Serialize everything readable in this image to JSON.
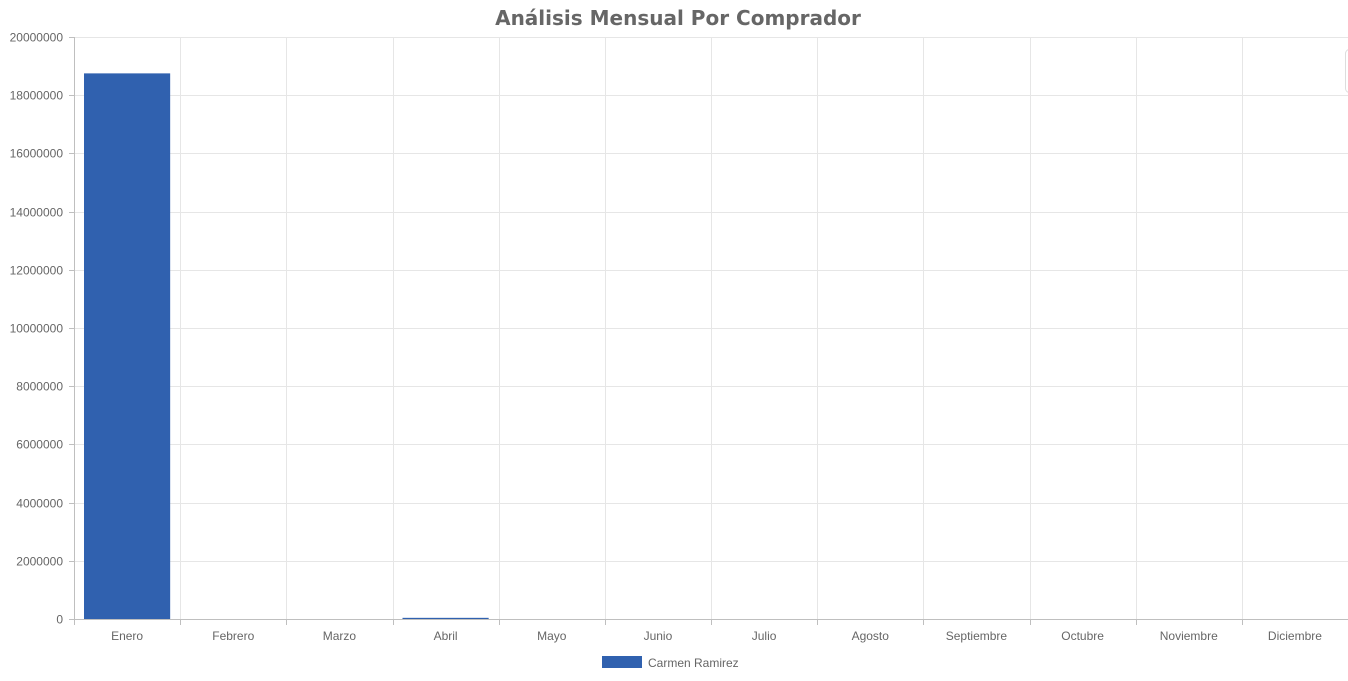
{
  "chart_data": {
    "type": "bar",
    "title": "Análisis Mensual Por Comprador",
    "xlabel": "",
    "ylabel": "",
    "categories": [
      "Enero",
      "Febrero",
      "Marzo",
      "Abril",
      "Mayo",
      "Junio",
      "Julio",
      "Agosto",
      "Septiembre",
      "Octubre",
      "Noviembre",
      "Diciembre"
    ],
    "series": [
      {
        "name": "Carmen Ramirez",
        "color": "#3061af",
        "values": [
          18750000,
          0,
          0,
          40000,
          0,
          0,
          0,
          0,
          0,
          0,
          0,
          0
        ]
      }
    ],
    "ylim": [
      0,
      20000000
    ],
    "yticks": [
      0,
      2000000,
      4000000,
      6000000,
      8000000,
      10000000,
      12000000,
      14000000,
      16000000,
      18000000,
      20000000
    ],
    "ytick_labels": [
      "0",
      "2000000",
      "4000000",
      "6000000",
      "8000000",
      "10000000",
      "12000000",
      "14000000",
      "16000000",
      "18000000",
      "20000000"
    ],
    "grid": true,
    "legend_position": "bottom-center"
  }
}
